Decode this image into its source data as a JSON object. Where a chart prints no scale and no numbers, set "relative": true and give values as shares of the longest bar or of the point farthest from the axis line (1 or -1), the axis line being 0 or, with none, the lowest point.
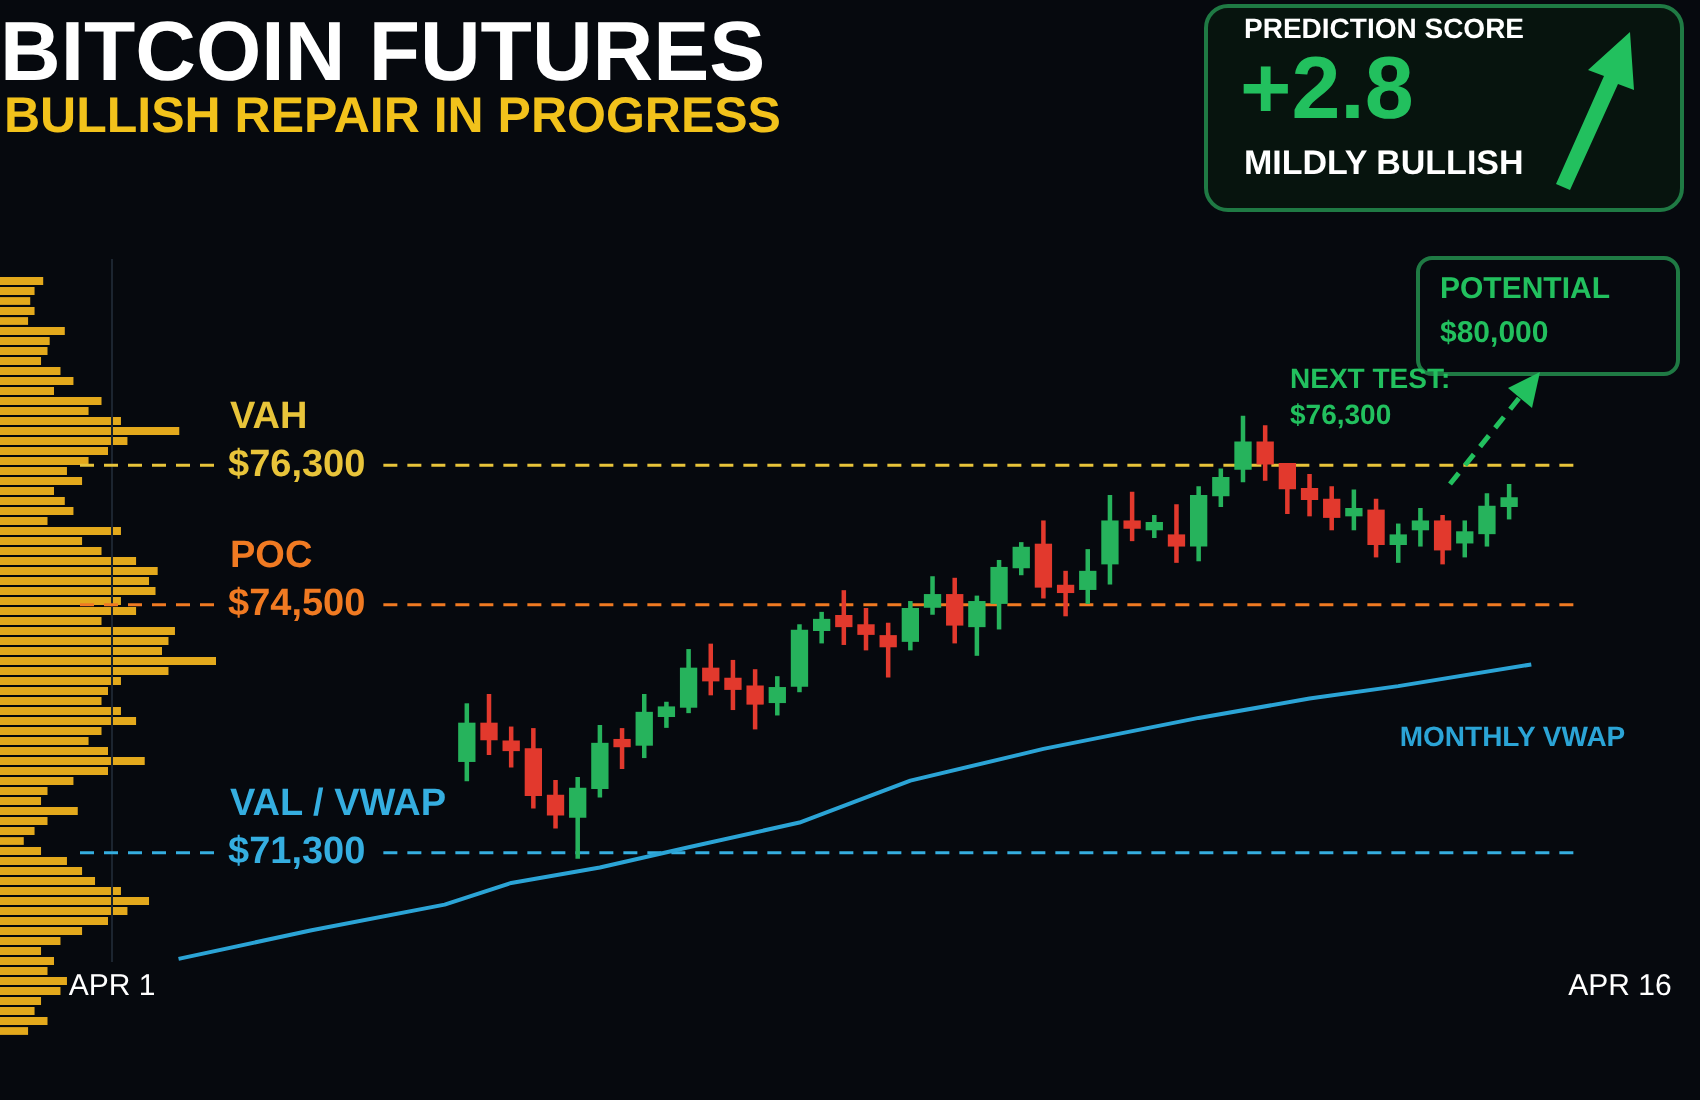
{
  "chart_data": [
    {
      "type": "candlestick",
      "title": "BITCOIN FUTURES",
      "subtitle": "BULLISH REPAIR IN PROGRESS",
      "categories": [
        "APR 1",
        null,
        null,
        null,
        null,
        null,
        null,
        null,
        null,
        null,
        null,
        null,
        null,
        null,
        null,
        null,
        null,
        null,
        null,
        null,
        null,
        null,
        null,
        null,
        null,
        null,
        null,
        null,
        null,
        null,
        null,
        null,
        null,
        null,
        null,
        null,
        null,
        null,
        null,
        null,
        null,
        null,
        null,
        null,
        null,
        null,
        null,
        null,
        null,
        null,
        null,
        null,
        null,
        null,
        null,
        null,
        null,
        null,
        null,
        null,
        null,
        null,
        null,
        null,
        null,
        null,
        null,
        null,
        "APR 16"
      ],
      "ohlc": [
        null,
        null,
        null,
        null,
        null,
        null,
        null,
        null,
        null,
        null,
        null,
        null,
        null,
        null,
        null,
        null,
        [
          72480,
          73220,
          72230,
          72970
        ],
        [
          72970,
          73340,
          72570,
          72760
        ],
        [
          72740,
          72920,
          72410,
          72620
        ],
        [
          72640,
          72900,
          71880,
          72040
        ],
        [
          72040,
          72230,
          71620,
          71790
        ],
        [
          71760,
          72270,
          71230,
          72130
        ],
        [
          72130,
          72940,
          72020,
          72710
        ],
        [
          72760,
          72900,
          72390,
          72670
        ],
        [
          72690,
          73340,
          72530,
          73110
        ],
        [
          73060,
          73240,
          72920,
          73180
        ],
        [
          73180,
          73920,
          73110,
          73680
        ],
        [
          73680,
          73990,
          73340,
          73520
        ],
        [
          73550,
          73780,
          73150,
          73410
        ],
        [
          73450,
          73660,
          72900,
          73220
        ],
        [
          73240,
          73570,
          73080,
          73430
        ],
        [
          73450,
          74240,
          73380,
          74170
        ],
        [
          74170,
          74400,
          74010,
          74310
        ],
        [
          74360,
          74680,
          73990,
          74220
        ],
        [
          74240,
          74450,
          73920,
          74120
        ],
        [
          74100,
          74260,
          73570,
          73960
        ],
        [
          74030,
          74540,
          73920,
          74450
        ],
        [
          74470,
          74860,
          74380,
          74630
        ],
        [
          74630,
          74840,
          74010,
          74240
        ],
        [
          74220,
          74610,
          73850,
          74540
        ],
        [
          74520,
          75070,
          74190,
          74980
        ],
        [
          74980,
          75300,
          74890,
          75240
        ],
        [
          75280,
          75580,
          74590,
          74730
        ],
        [
          74750,
          74930,
          74360,
          74660
        ],
        [
          74700,
          75210,
          74520,
          74930
        ],
        [
          75030,
          75910,
          74770,
          75580
        ],
        [
          75580,
          75950,
          75330,
          75490
        ],
        [
          75470,
          75650,
          75370,
          75560
        ],
        [
          75400,
          75790,
          75050,
          75260
        ],
        [
          75260,
          76020,
          75070,
          75910
        ],
        [
          75910,
          76250,
          75770,
          76140
        ],
        [
          76250,
          76930,
          76090,
          76600
        ],
        [
          76600,
          76810,
          76110,
          76320
        ],
        [
          76320,
          76320,
          75680,
          76000
        ],
        [
          76000,
          76180,
          75650,
          75860
        ],
        [
          75860,
          76020,
          75470,
          75630
        ],
        [
          75650,
          75980,
          75470,
          75740
        ],
        [
          75720,
          75860,
          75120,
          75280
        ],
        [
          75280,
          75540,
          75050,
          75400
        ],
        [
          75470,
          75740,
          75260,
          75580
        ],
        [
          75580,
          75650,
          75030,
          75210
        ],
        [
          75300,
          75580,
          75120,
          75440
        ],
        [
          75420,
          75930,
          75260,
          75770
        ],
        [
          75770,
          76050,
          75610,
          75880
        ],
        null,
        null,
        null,
        null,
        null
      ],
      "colors": [
        null,
        null,
        null,
        null,
        null,
        null,
        null,
        null,
        null,
        null,
        null,
        null,
        null,
        null,
        null,
        null,
        "#26b35c",
        "#e2392d",
        "#e2392d",
        "#e2392d",
        "#e2392d",
        "#26b35c",
        "#26b35c",
        "#e2392d",
        "#26b35c",
        "#26b35c",
        "#26b35c",
        "#e2392d",
        "#e2392d",
        "#e2392d",
        "#26b35c",
        "#26b35c",
        "#26b35c",
        "#e2392d",
        "#e2392d",
        "#e2392d",
        "#26b35c",
        "#26b35c",
        "#e2392d",
        "#26b35c",
        "#26b35c",
        "#26b35c",
        "#e2392d",
        "#e2392d",
        "#26b35c",
        "#26b35c",
        "#e2392d",
        "#26b35c",
        "#e2392d",
        "#26b35c",
        "#26b35c",
        "#26b35c",
        "#e2392d",
        "#e2392d",
        "#e2392d",
        "#e2392d",
        "#26b35c",
        "#e2392d",
        "#26b35c",
        "#26b35c",
        "#e2392d",
        "#26b35c",
        "#26b35c",
        "#26b35c",
        null,
        null,
        null,
        null,
        null
      ],
      "series": [
        {
          "name": "MONTHLY VWAP",
          "type": "line",
          "color": "#2ba4d6",
          "values": [
            null,
            null,
            null,
            69930,
            null,
            null,
            null,
            null,
            null,
            70300,
            null,
            null,
            null,
            null,
            null,
            70630,
            null,
            null,
            70910,
            null,
            null,
            null,
            71110,
            null,
            null,
            null,
            71370,
            null,
            null,
            null,
            null,
            71690,
            null,
            null,
            null,
            null,
            72230,
            null,
            null,
            null,
            null,
            null,
            72640,
            null,
            null,
            null,
            null,
            null,
            null,
            73040,
            null,
            null,
            null,
            null,
            73290,
            null,
            null,
            null,
            73450,
            null,
            null,
            null,
            null,
            null,
            73730,
            null,
            null,
            null,
            null
          ]
        }
      ],
      "ylim": [
        69900,
        78950
      ],
      "yticks": [
        {
          "value": 71300,
          "label": "$71,300"
        },
        {
          "value": 74500,
          "label": "$74,500"
        },
        {
          "value": 76300,
          "label": "$76,300"
        }
      ],
      "ref_lines": [
        {
          "axis": "y",
          "value": 76300,
          "label": "VAH",
          "color": "#e8c43a",
          "line_style": "dashed"
        },
        {
          "axis": "y",
          "value": 74500,
          "label": "POC",
          "color": "#f07a22",
          "line_style": "dashed"
        },
        {
          "axis": "y",
          "value": 71300,
          "label": "VAL / VWAP",
          "color": "#35aee0",
          "line_style": "dashed"
        }
      ],
      "annotations": [
        "PREDICTION SCORE",
        "+2.8",
        "MILDLY BULLISH",
        "POTENTIAL\n$80,000",
        "NEXT TEST:\n$76,300"
      ],
      "legend": false
    },
    {
      "type": "bar",
      "orientation": "horizontal",
      "relative": true,
      "color": "#e3a91c",
      "categories": [
        null,
        null,
        null,
        null,
        null,
        null,
        null,
        null,
        null,
        null,
        null,
        null,
        null,
        null,
        null,
        null,
        null,
        null,
        null,
        null,
        null,
        null,
        null,
        null,
        null,
        null,
        null,
        null,
        null,
        null,
        null,
        null,
        null,
        null,
        null,
        null,
        null,
        null,
        null,
        null,
        null,
        null,
        null,
        null,
        null,
        null,
        null,
        null,
        null,
        null,
        null,
        null,
        null,
        null,
        null,
        null,
        null,
        null,
        null,
        null,
        null,
        null,
        null,
        null,
        null,
        null,
        null,
        null,
        null,
        null,
        null,
        null,
        null,
        null,
        null,
        null
      ],
      "values": [
        0.2,
        0.16,
        0.14,
        0.16,
        0.13,
        0.3,
        0.23,
        0.22,
        0.19,
        0.28,
        0.34,
        0.25,
        0.47,
        0.41,
        0.56,
        0.83,
        0.59,
        0.5,
        0.41,
        0.31,
        0.38,
        0.25,
        0.3,
        0.34,
        0.22,
        0.56,
        0.38,
        0.47,
        0.63,
        0.73,
        0.69,
        0.72,
        0.56,
        0.63,
        0.47,
        0.81,
        0.78,
        0.75,
        1,
        0.78,
        0.56,
        0.5,
        0.47,
        0.56,
        0.63,
        0.47,
        0.41,
        0.5,
        0.67,
        0.5,
        0.34,
        0.22,
        0.19,
        0.36,
        0.22,
        0.16,
        0.11,
        0.19,
        0.31,
        0.38,
        0.44,
        0.56,
        0.69,
        0.59,
        0.5,
        0.38,
        0.28,
        0.19,
        0.25,
        0.22,
        0.31,
        0.28,
        0.19,
        0.16,
        0.22,
        0.13
      ],
      "legend": false,
      "tick_labels": false
    }
  ]
}
